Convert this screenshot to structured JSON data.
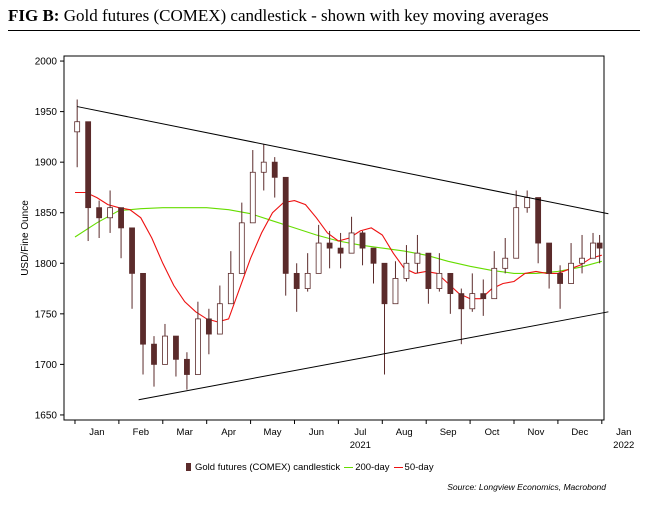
{
  "figure": {
    "label": "FIG B:",
    "title": "Gold futures (COMEX) candlestick - shown with key moving averages",
    "source": "Source: Longview Economics, Macrobond"
  },
  "chart_data": {
    "type": "candlestick",
    "ylabel": "USD/Fine Ounce",
    "ylim": [
      1645,
      2005
    ],
    "yticks": [
      1650,
      1700,
      1750,
      1800,
      1850,
      1900,
      1950,
      2000
    ],
    "xlim": [
      0,
      12
    ],
    "month_labels": [
      "Jan",
      "Feb",
      "Mar",
      "Apr",
      "May",
      "Jun",
      "Jul",
      "Aug",
      "Sep",
      "Oct",
      "Nov",
      "Dec",
      "Jan"
    ],
    "year_labels": [
      {
        "month_index": 6,
        "text": "2021"
      },
      {
        "month_index": 12,
        "text": "2022"
      }
    ],
    "grid": false,
    "legend_position": "bottom",
    "colors": {
      "candle": "#5b2b2b",
      "ma200": "#66dd00",
      "ma50": "#ee1111",
      "trendline": "#000000"
    },
    "series": [
      {
        "name": "Gold futures (COMEX) candlestick",
        "kind": "candlestick",
        "x_months": [
          0.05,
          0.3,
          0.55,
          0.8,
          1.05,
          1.3,
          1.55,
          1.8,
          2.05,
          2.3,
          2.55,
          2.8,
          3.05,
          3.3,
          3.55,
          3.8,
          4.05,
          4.3,
          4.55,
          4.8,
          5.05,
          5.3,
          5.55,
          5.8,
          6.05,
          6.3,
          6.55,
          6.8,
          7.05,
          7.3,
          7.55,
          7.8,
          8.05,
          8.3,
          8.55,
          8.8,
          9.05,
          9.3,
          9.55,
          9.8,
          10.05,
          10.3,
          10.55,
          10.8,
          11.05,
          11.3,
          11.55,
          11.8,
          11.95
        ],
        "close": [
          1940,
          1855,
          1845,
          1855,
          1835,
          1790,
          1720,
          1700,
          1728,
          1705,
          1690,
          1745,
          1730,
          1760,
          1790,
          1840,
          1890,
          1900,
          1885,
          1790,
          1775,
          1790,
          1820,
          1815,
          1810,
          1830,
          1815,
          1800,
          1760,
          1785,
          1800,
          1810,
          1775,
          1790,
          1770,
          1755,
          1770,
          1765,
          1795,
          1805,
          1855,
          1865,
          1820,
          1790,
          1780,
          1800,
          1805,
          1820,
          1815
        ],
        "high": [
          1962,
          1878,
          1862,
          1872,
          1855,
          1822,
          1745,
          1728,
          1740,
          1722,
          1712,
          1762,
          1755,
          1778,
          1812,
          1860,
          1912,
          1918,
          1905,
          1815,
          1800,
          1810,
          1838,
          1832,
          1830,
          1846,
          1832,
          1815,
          1782,
          1802,
          1818,
          1828,
          1795,
          1810,
          1788,
          1775,
          1790,
          1784,
          1812,
          1825,
          1872,
          1872,
          1838,
          1810,
          1798,
          1820,
          1828,
          1830,
          1828
        ],
        "low": [
          1895,
          1822,
          1825,
          1830,
          1805,
          1755,
          1690,
          1678,
          1705,
          1688,
          1675,
          1725,
          1710,
          1742,
          1770,
          1820,
          1862,
          1872,
          1865,
          1768,
          1752,
          1772,
          1800,
          1795,
          1795,
          1812,
          1798,
          1780,
          1690,
          1770,
          1782,
          1790,
          1760,
          1772,
          1750,
          1720,
          1752,
          1748,
          1780,
          1790,
          1830,
          1850,
          1800,
          1775,
          1755,
          1785,
          1790,
          1805,
          1800
        ]
      },
      {
        "name": "200-day",
        "kind": "line",
        "x_months": [
          0,
          0.5,
          1,
          1.5,
          2,
          2.5,
          3,
          3.5,
          4,
          4.5,
          5,
          5.5,
          6,
          6.5,
          7,
          7.5,
          8,
          8.5,
          9,
          9.5,
          10,
          10.5,
          11,
          11.5,
          12
        ],
        "values": [
          1826,
          1840,
          1852,
          1854,
          1855,
          1855,
          1855,
          1853,
          1849,
          1842,
          1835,
          1828,
          1822,
          1818,
          1815,
          1812,
          1808,
          1802,
          1797,
          1793,
          1790,
          1790,
          1792,
          1796,
          1802
        ]
      },
      {
        "name": "50-day",
        "kind": "line",
        "x_months": [
          0,
          0.25,
          0.5,
          0.75,
          1,
          1.25,
          1.5,
          1.75,
          2,
          2.25,
          2.5,
          2.75,
          3,
          3.25,
          3.5,
          3.75,
          4,
          4.25,
          4.5,
          4.75,
          5,
          5.25,
          5.5,
          5.75,
          6,
          6.25,
          6.5,
          6.75,
          7,
          7.25,
          7.5,
          7.75,
          8,
          8.25,
          8.5,
          8.75,
          9,
          9.25,
          9.5,
          9.75,
          10,
          10.25,
          10.5,
          10.75,
          11,
          11.25,
          11.5,
          11.75,
          12
        ],
        "values": [
          1870,
          1870,
          1865,
          1858,
          1855,
          1853,
          1845,
          1825,
          1800,
          1778,
          1762,
          1752,
          1745,
          1742,
          1745,
          1775,
          1805,
          1830,
          1850,
          1860,
          1862,
          1858,
          1845,
          1830,
          1822,
          1825,
          1832,
          1835,
          1828,
          1810,
          1795,
          1790,
          1792,
          1790,
          1780,
          1770,
          1765,
          1765,
          1775,
          1780,
          1782,
          1790,
          1792,
          1790,
          1790,
          1794,
          1798,
          1805,
          1808
        ]
      },
      {
        "name": "resistance trendline",
        "kind": "trendline",
        "points": [
          {
            "x": 0.05,
            "y": 1955
          },
          {
            "x": 12.15,
            "y": 1849
          }
        ]
      },
      {
        "name": "support trendline",
        "kind": "trendline",
        "points": [
          {
            "x": 1.45,
            "y": 1665
          },
          {
            "x": 12.15,
            "y": 1752
          }
        ]
      }
    ]
  }
}
